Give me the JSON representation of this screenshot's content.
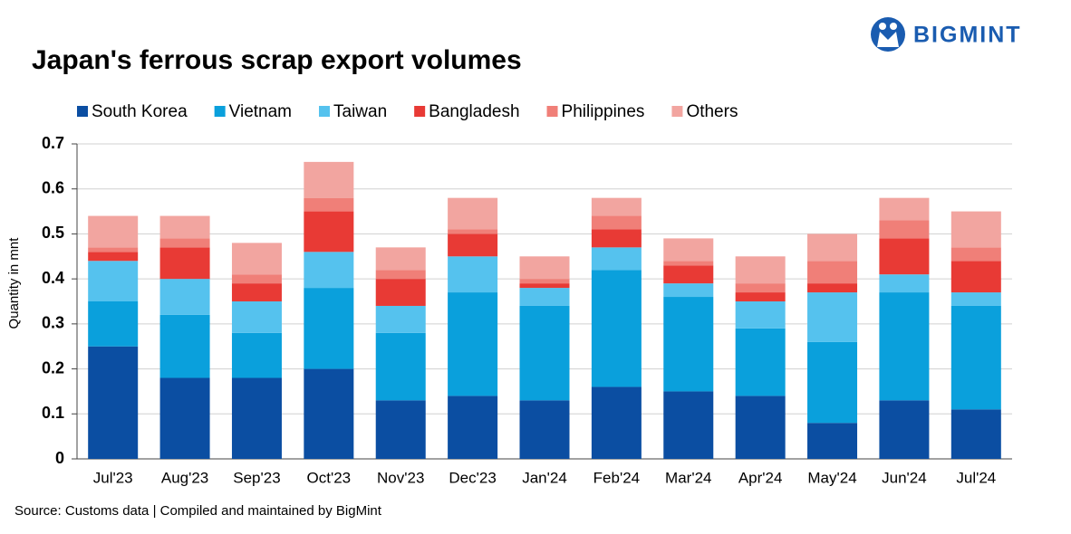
{
  "chart_data": {
    "type": "stacked_bar",
    "title": "Japan's ferrous scrap export volumes",
    "logo": "BIGMINT",
    "y_label": "Quantity in mnt",
    "source": "Source: Customs data | Compiled and maintained by BigMint",
    "categories": [
      "Jul'23",
      "Aug'23",
      "Sep'23",
      "Oct'23",
      "Nov'23",
      "Dec'23",
      "Jan'24",
      "Feb'24",
      "Mar'24",
      "Apr'24",
      "May'24",
      "Jun'24",
      "Jul'24"
    ],
    "series": [
      {
        "name": "South Korea",
        "color": "#0b4ea2",
        "values": [
          0.25,
          0.18,
          0.18,
          0.2,
          0.13,
          0.14,
          0.13,
          0.16,
          0.15,
          0.14,
          0.08,
          0.13,
          0.11
        ]
      },
      {
        "name": "Vietnam",
        "color": "#0aa0dc",
        "values": [
          0.1,
          0.14,
          0.1,
          0.18,
          0.15,
          0.23,
          0.21,
          0.26,
          0.21,
          0.15,
          0.18,
          0.24,
          0.23
        ]
      },
      {
        "name": "Taiwan",
        "color": "#55c2ee",
        "values": [
          0.09,
          0.08,
          0.07,
          0.08,
          0.06,
          0.08,
          0.04,
          0.05,
          0.03,
          0.06,
          0.11,
          0.04,
          0.03
        ]
      },
      {
        "name": "Bangladesh",
        "color": "#e83a35",
        "values": [
          0.02,
          0.07,
          0.04,
          0.09,
          0.06,
          0.05,
          0.01,
          0.04,
          0.04,
          0.02,
          0.02,
          0.08,
          0.07
        ]
      },
      {
        "name": "Philippines",
        "color": "#f07f78",
        "values": [
          0.01,
          0.02,
          0.02,
          0.03,
          0.02,
          0.01,
          0.01,
          0.03,
          0.01,
          0.02,
          0.05,
          0.04,
          0.03
        ]
      },
      {
        "name": "Others",
        "color": "#f2a5a0",
        "values": [
          0.07,
          0.05,
          0.07,
          0.08,
          0.05,
          0.07,
          0.05,
          0.04,
          0.05,
          0.06,
          0.06,
          0.05,
          0.08
        ]
      }
    ],
    "ylim": [
      0,
      0.7
    ],
    "yticks": [
      0,
      0.1,
      0.2,
      0.3,
      0.4,
      0.5,
      0.6,
      0.7
    ],
    "grid": true,
    "legend": "top"
  }
}
